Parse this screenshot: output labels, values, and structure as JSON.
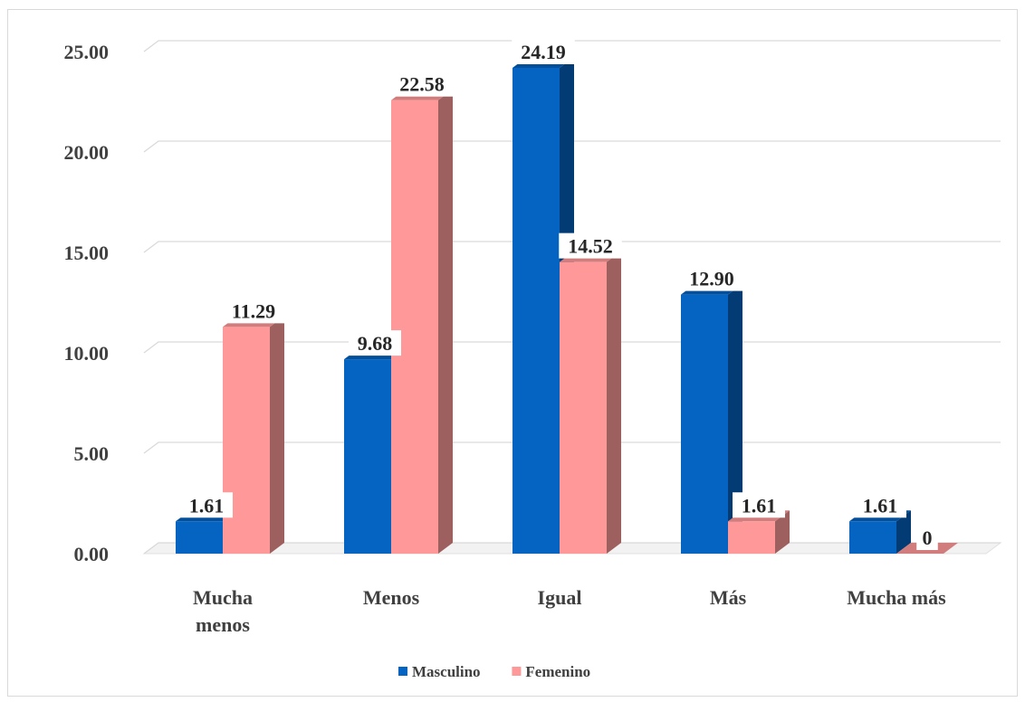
{
  "chart_data": {
    "type": "bar",
    "categories": [
      "Mucha menos",
      "Menos",
      "Igual",
      "Más",
      "Mucha más"
    ],
    "series": [
      {
        "name": "Masculino",
        "values": [
          1.61,
          9.68,
          24.19,
          12.9,
          1.61
        ],
        "labels": [
          "1.61",
          "9.68",
          "24.19",
          "12.90",
          "1.61"
        ],
        "color": "#0563c1"
      },
      {
        "name": "Femenino",
        "values": [
          11.29,
          22.58,
          14.52,
          1.61,
          0
        ],
        "labels": [
          "11.29",
          "22.58",
          "14.52",
          "1.61",
          "0"
        ],
        "color": "#ff9999"
      }
    ],
    "yticks": [
      "0.00",
      "5.00",
      "10.00",
      "15.00",
      "20.00",
      "25.00"
    ],
    "ylim": [
      0,
      25
    ],
    "grid": true,
    "legend": "bottom",
    "title": "",
    "xlabel": "",
    "ylabel": ""
  }
}
